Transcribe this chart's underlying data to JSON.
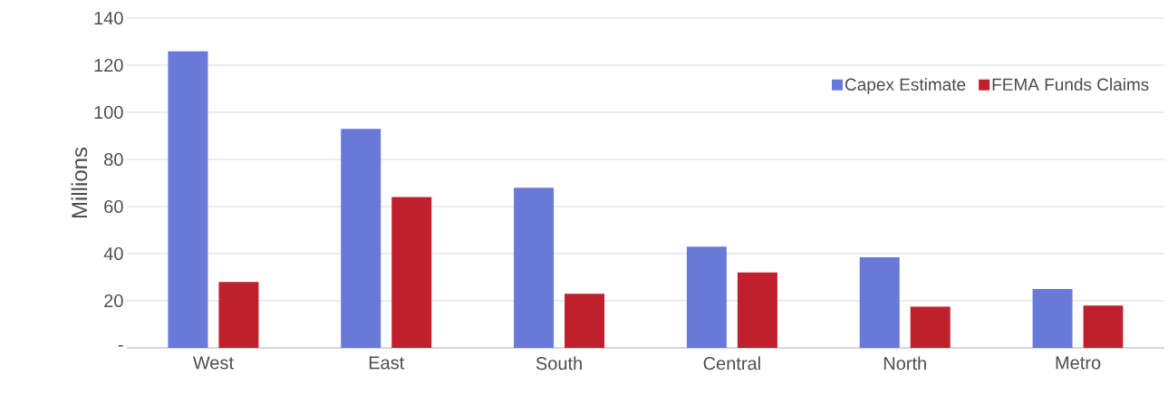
{
  "chart_data": {
    "type": "bar",
    "ylabel": "Millions",
    "categories": [
      "West",
      "East",
      "South",
      "Central",
      "North",
      "Metro"
    ],
    "series": [
      {
        "name": "Capex Estimate",
        "color": "#6979d8",
        "values": [
          126,
          93,
          68,
          43,
          38.5,
          25
        ]
      },
      {
        "name": "FEMA Funds Claims",
        "color": "#c0202e",
        "values": [
          28,
          64,
          23,
          32,
          17.5,
          18
        ]
      }
    ],
    "ylim": [
      0,
      140
    ],
    "yticks": [
      {
        "value": 0,
        "label": "-"
      },
      20,
      40,
      60,
      80,
      100,
      120,
      140
    ],
    "grid": "y",
    "legend": "top right"
  }
}
